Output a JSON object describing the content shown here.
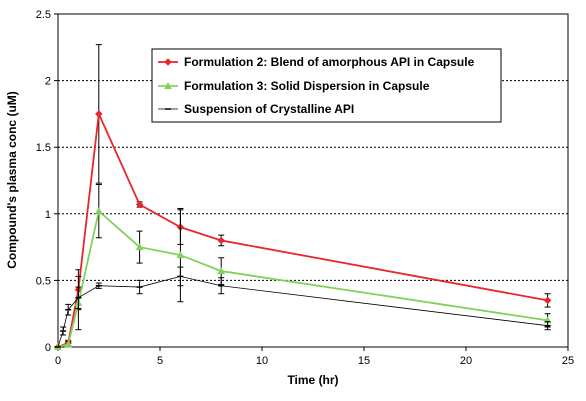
{
  "chart_data": {
    "type": "line",
    "title": "",
    "xlabel": "Time (hr)",
    "ylabel": "Compound's plasma conc  (uM)",
    "xlim": [
      0,
      25
    ],
    "ylim": [
      0,
      2.5
    ],
    "xticks": [
      "0",
      "5",
      "10",
      "15",
      "20",
      "25"
    ],
    "yticks": [
      "0",
      "0.5",
      "1",
      "1.5",
      "2",
      "2.5"
    ],
    "grid": "horizontal dotted",
    "legend_position": "top-right",
    "series": [
      {
        "name": "Formulation 2: Blend of amorphous API in Capsule",
        "color": "#e8262b",
        "marker": "diamond",
        "x": [
          0,
          0.5,
          1,
          2,
          4,
          6,
          8,
          24
        ],
        "y": [
          0,
          0.03,
          0.43,
          1.75,
          1.07,
          0.9,
          0.8,
          0.35
        ],
        "err": [
          0,
          0.02,
          0.15,
          0.52,
          0.02,
          0.13,
          0.04,
          0.05
        ]
      },
      {
        "name": "Formulation 3: Solid Dispersion in Capsule",
        "color": "#7fd35b",
        "marker": "triangle",
        "x": [
          0,
          0.5,
          1,
          2,
          4,
          6,
          8,
          24
        ],
        "y": [
          0,
          0.02,
          0.33,
          1.02,
          0.75,
          0.69,
          0.57,
          0.2
        ],
        "err": [
          0,
          0.02,
          0.2,
          0.2,
          0.12,
          0.35,
          0.1,
          0.05
        ]
      },
      {
        "name": "Suspension of Crystalline API",
        "color": "#000000",
        "marker": "dash",
        "x": [
          0,
          0.25,
          0.5,
          1,
          2,
          4,
          6,
          8,
          24
        ],
        "y": [
          0,
          0.12,
          0.28,
          0.37,
          0.46,
          0.45,
          0.53,
          0.46,
          0.16
        ],
        "err": [
          0,
          0.03,
          0.04,
          0.08,
          0.02,
          0.05,
          0.07,
          0.06,
          0.03
        ]
      }
    ]
  }
}
